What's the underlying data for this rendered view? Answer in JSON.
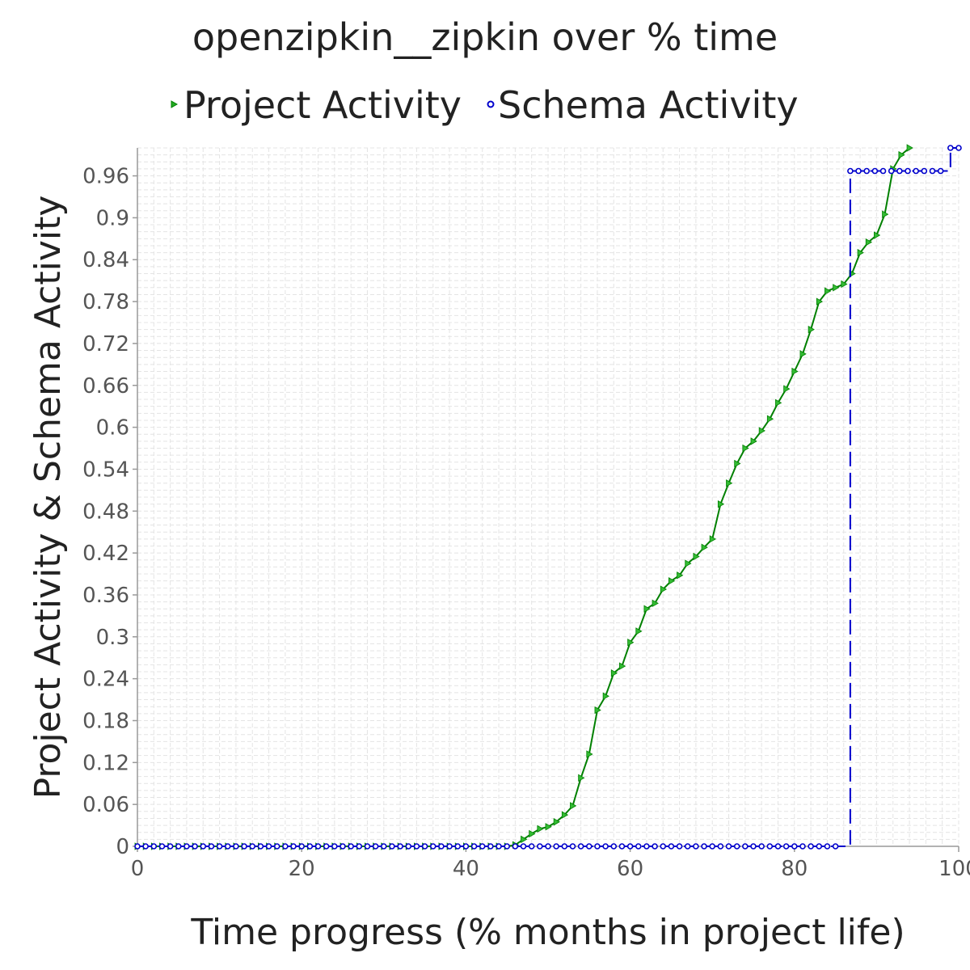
{
  "chart_data": {
    "type": "line",
    "title": "openzipkin__zipkin over % time",
    "xlabel": "Time progress (% months in project life)",
    "ylabel": "Project Activity & Schema Activity",
    "xlim": [
      0,
      100
    ],
    "ylim": [
      0,
      1.0
    ],
    "x_ticks": [
      "0",
      "20",
      "40",
      "60",
      "80",
      "100"
    ],
    "y_ticks": [
      "0",
      "0.06",
      "0.12",
      "0.18",
      "0.24",
      "0.3",
      "0.36",
      "0.42",
      "0.48",
      "0.54",
      "0.6",
      "0.66",
      "0.72",
      "0.78",
      "0.84",
      "0.9",
      "0.96"
    ],
    "grid": true,
    "legend_position": "top",
    "series": [
      {
        "name": "Project Activity",
        "color": "#008000",
        "marker": "triangle-right",
        "line_style": "solid",
        "points": [
          [
            0,
            0
          ],
          [
            1,
            0
          ],
          [
            2,
            0
          ],
          [
            3,
            0
          ],
          [
            4,
            0
          ],
          [
            5,
            0
          ],
          [
            6,
            0
          ],
          [
            7,
            0
          ],
          [
            8,
            0
          ],
          [
            9,
            0
          ],
          [
            10,
            0
          ],
          [
            11,
            0
          ],
          [
            12,
            0
          ],
          [
            13,
            0
          ],
          [
            14,
            0
          ],
          [
            15,
            0
          ],
          [
            16,
            0
          ],
          [
            17,
            0
          ],
          [
            18,
            0
          ],
          [
            19,
            0
          ],
          [
            20,
            0
          ],
          [
            21,
            0
          ],
          [
            22,
            0
          ],
          [
            23,
            0
          ],
          [
            24,
            0
          ],
          [
            25,
            0
          ],
          [
            26,
            0
          ],
          [
            27,
            0
          ],
          [
            28,
            0
          ],
          [
            29,
            0
          ],
          [
            30,
            0
          ],
          [
            31,
            0
          ],
          [
            32,
            0
          ],
          [
            33,
            0
          ],
          [
            34,
            0
          ],
          [
            35,
            0
          ],
          [
            36,
            0
          ],
          [
            37,
            0
          ],
          [
            38,
            0
          ],
          [
            39,
            0
          ],
          [
            40,
            0
          ],
          [
            41,
            0
          ],
          [
            42,
            0
          ],
          [
            43,
            0
          ],
          [
            44,
            0
          ],
          [
            45,
            0
          ],
          [
            46,
            0.002
          ],
          [
            47,
            0.01
          ],
          [
            48,
            0.018
          ],
          [
            49,
            0.025
          ],
          [
            50,
            0.028
          ],
          [
            51,
            0.035
          ],
          [
            52,
            0.045
          ],
          [
            53,
            0.058
          ],
          [
            54,
            0.098
          ],
          [
            55,
            0.132
          ],
          [
            56,
            0.195
          ],
          [
            57,
            0.215
          ],
          [
            58,
            0.248
          ],
          [
            59,
            0.258
          ],
          [
            60,
            0.292
          ],
          [
            61,
            0.308
          ],
          [
            62,
            0.34
          ],
          [
            63,
            0.348
          ],
          [
            64,
            0.368
          ],
          [
            65,
            0.38
          ],
          [
            66,
            0.388
          ],
          [
            67,
            0.405
          ],
          [
            68,
            0.415
          ],
          [
            69,
            0.428
          ],
          [
            70,
            0.44
          ],
          [
            71,
            0.49
          ],
          [
            72,
            0.52
          ],
          [
            73,
            0.548
          ],
          [
            74,
            0.57
          ],
          [
            75,
            0.58
          ],
          [
            76,
            0.595
          ],
          [
            77,
            0.612
          ],
          [
            78,
            0.635
          ],
          [
            79,
            0.655
          ],
          [
            80,
            0.68
          ],
          [
            81,
            0.705
          ],
          [
            82,
            0.74
          ],
          [
            83,
            0.78
          ],
          [
            84,
            0.795
          ],
          [
            85,
            0.8
          ],
          [
            86,
            0.805
          ],
          [
            87,
            0.82
          ],
          [
            88,
            0.85
          ],
          [
            89,
            0.865
          ],
          [
            90,
            0.875
          ],
          [
            91,
            0.905
          ],
          [
            92,
            0.97
          ],
          [
            93,
            0.99
          ],
          [
            94,
            1.0
          ]
        ]
      },
      {
        "name": "Schema Activity",
        "color": "#0000CC",
        "marker": "circle",
        "line_style": "dashed",
        "points": [
          [
            0,
            0
          ],
          [
            1,
            0
          ],
          [
            2,
            0
          ],
          [
            3,
            0
          ],
          [
            4,
            0
          ],
          [
            5,
            0
          ],
          [
            6,
            0
          ],
          [
            7,
            0
          ],
          [
            8,
            0
          ],
          [
            9,
            0
          ],
          [
            10,
            0
          ],
          [
            11,
            0
          ],
          [
            12,
            0
          ],
          [
            13,
            0
          ],
          [
            14,
            0
          ],
          [
            15,
            0
          ],
          [
            16,
            0
          ],
          [
            17,
            0
          ],
          [
            18,
            0
          ],
          [
            19,
            0
          ],
          [
            20,
            0
          ],
          [
            21,
            0
          ],
          [
            22,
            0
          ],
          [
            23,
            0
          ],
          [
            24,
            0
          ],
          [
            25,
            0
          ],
          [
            26,
            0
          ],
          [
            27,
            0
          ],
          [
            28,
            0
          ],
          [
            29,
            0
          ],
          [
            30,
            0
          ],
          [
            31,
            0
          ],
          [
            32,
            0
          ],
          [
            33,
            0
          ],
          [
            34,
            0
          ],
          [
            35,
            0
          ],
          [
            36,
            0
          ],
          [
            37,
            0
          ],
          [
            38,
            0
          ],
          [
            39,
            0
          ],
          [
            40,
            0
          ],
          [
            41,
            0
          ],
          [
            42,
            0
          ],
          [
            43,
            0
          ],
          [
            44,
            0
          ],
          [
            45,
            0
          ],
          [
            46,
            0
          ],
          [
            47,
            0
          ],
          [
            48,
            0
          ],
          [
            49,
            0
          ],
          [
            50,
            0
          ],
          [
            51,
            0
          ],
          [
            52,
            0
          ],
          [
            53,
            0
          ],
          [
            54,
            0
          ],
          [
            55,
            0
          ],
          [
            56,
            0
          ],
          [
            57,
            0
          ],
          [
            58,
            0
          ],
          [
            59,
            0
          ],
          [
            60,
            0
          ],
          [
            61,
            0
          ],
          [
            62,
            0
          ],
          [
            63,
            0
          ],
          [
            64,
            0
          ],
          [
            65,
            0
          ],
          [
            66,
            0
          ],
          [
            67,
            0
          ],
          [
            68,
            0
          ],
          [
            69,
            0
          ],
          [
            70,
            0
          ],
          [
            71,
            0
          ],
          [
            72,
            0
          ],
          [
            73,
            0
          ],
          [
            74,
            0
          ],
          [
            75,
            0
          ],
          [
            76,
            0
          ],
          [
            77,
            0
          ],
          [
            78,
            0
          ],
          [
            79,
            0
          ],
          [
            80,
            0
          ],
          [
            81,
            0
          ],
          [
            82,
            0
          ],
          [
            83,
            0
          ],
          [
            84,
            0
          ],
          [
            85,
            0
          ],
          [
            86.8,
            0.967
          ],
          [
            87.8,
            0.967
          ],
          [
            88.8,
            0.967
          ],
          [
            89.8,
            0.967
          ],
          [
            90.8,
            0.967
          ],
          [
            91.8,
            0.967
          ],
          [
            92.8,
            0.967
          ],
          [
            93.8,
            0.967
          ],
          [
            94.8,
            0.967
          ],
          [
            95.8,
            0.967
          ],
          [
            96.8,
            0.967
          ],
          [
            97.8,
            0.967
          ],
          [
            99.0,
            1.0
          ],
          [
            100,
            1.0
          ]
        ]
      }
    ]
  }
}
